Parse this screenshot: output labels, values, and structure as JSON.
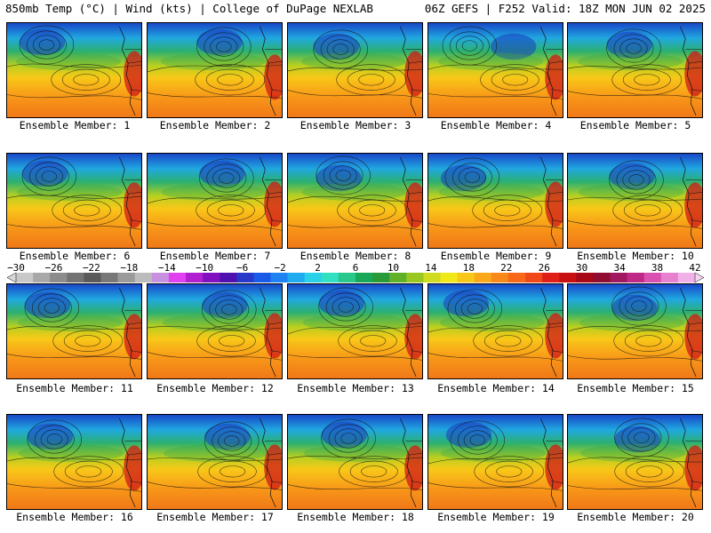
{
  "header": {
    "left": "850mb Temp (°C) | Wind (kts) | College of DuPage NEXLAB",
    "right": "06Z GEFS | F252 Valid: 18Z MON JUN 02 2025"
  },
  "colorbar": {
    "labels": [
      "−30",
      "−26",
      "−22",
      "−18",
      "−14",
      "−10",
      "−6",
      "−2",
      "2",
      "6",
      "10",
      "14",
      "18",
      "22",
      "26",
      "30",
      "34",
      "38",
      "42"
    ],
    "colors": [
      "#c8c8c8",
      "#a8a8a8",
      "#8c8c8c",
      "#737373",
      "#5a5a5a",
      "#787878",
      "#9a9a9a",
      "#bcbcbc",
      "#c890e0",
      "#e040f0",
      "#b020d0",
      "#8010c0",
      "#5010b0",
      "#2838c8",
      "#1a5ae8",
      "#1e82f0",
      "#20aaf0",
      "#28d0e8",
      "#30e0c0",
      "#28c88a",
      "#18a858",
      "#2a9a38",
      "#60b028",
      "#98c820",
      "#d0dc20",
      "#f0e818",
      "#f8c818",
      "#f8a818",
      "#f88818",
      "#f86818",
      "#f04818",
      "#e02018",
      "#c81010",
      "#a80818",
      "#900c30",
      "#a01860",
      "#c02888",
      "#d850b0",
      "#e880d0",
      "#f0b0e8"
    ]
  },
  "panels": [
    {
      "label": "Ensemble Member: 1"
    },
    {
      "label": "Ensemble Member: 2"
    },
    {
      "label": "Ensemble Member: 3"
    },
    {
      "label": "Ensemble Member: 4"
    },
    {
      "label": "Ensemble Member: 5"
    },
    {
      "label": "Ensemble Member: 6"
    },
    {
      "label": "Ensemble Member: 7"
    },
    {
      "label": "Ensemble Member: 8"
    },
    {
      "label": "Ensemble Member: 9"
    },
    {
      "label": "Ensemble Member: 10"
    },
    {
      "label": "Ensemble Member: 11"
    },
    {
      "label": "Ensemble Member: 12"
    },
    {
      "label": "Ensemble Member: 13"
    },
    {
      "label": "Ensemble Member: 14"
    },
    {
      "label": "Ensemble Member: 15"
    },
    {
      "label": "Ensemble Member: 16"
    },
    {
      "label": "Ensemble Member: 17"
    },
    {
      "label": "Ensemble Member: 18"
    },
    {
      "label": "Ensemble Member: 19"
    },
    {
      "label": "Ensemble Member: 20"
    }
  ]
}
